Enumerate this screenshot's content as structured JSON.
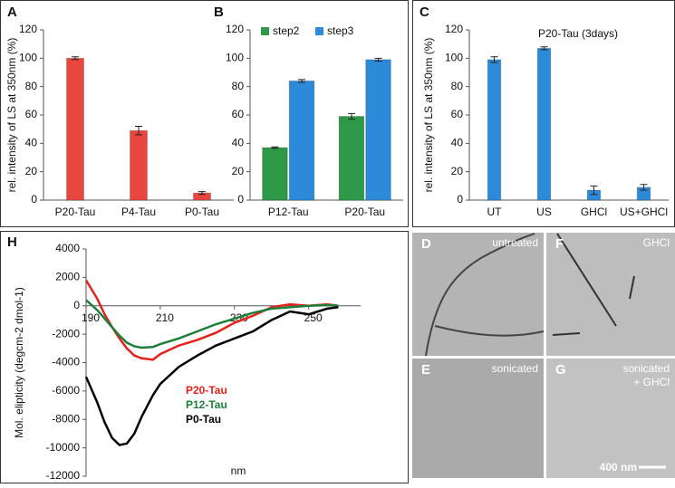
{
  "chart_data": [
    {
      "type": "bar",
      "panel": "A",
      "ylabel": "rel. intensity of LS at 350nm (%)",
      "categories": [
        "P20-Tau",
        "P4-Tau",
        "P0-Tau"
      ],
      "series": [
        {
          "color": "#e8463f",
          "values": [
            100,
            49,
            5
          ],
          "errors": [
            1,
            3,
            1
          ]
        }
      ],
      "ylim": [
        0,
        120
      ],
      "yticks": [
        0,
        20,
        40,
        60,
        80,
        100,
        120
      ]
    },
    {
      "type": "bar",
      "panel": "B",
      "categories": [
        "P12-Tau",
        "P20-Tau"
      ],
      "series": [
        {
          "name": "step2",
          "color": "#2e9a48",
          "values": [
            37,
            59
          ],
          "errors": [
            0.5,
            2
          ]
        },
        {
          "name": "step3",
          "color": "#2d8ad8",
          "values": [
            84,
            99
          ],
          "errors": [
            1,
            1
          ]
        }
      ],
      "ylim": [
        0,
        120
      ],
      "yticks": [
        0,
        20,
        40,
        60,
        80,
        100,
        120
      ]
    },
    {
      "type": "bar",
      "panel": "C",
      "title": "P20-Tau (3days)",
      "ylabel": "rel. intensity of LS at 350nm (%)",
      "categories": [
        "UT",
        "US",
        "GHCl",
        "US+GHCl"
      ],
      "series": [
        {
          "color": "#2d8ad8",
          "values": [
            99,
            107,
            7,
            9
          ],
          "errors": [
            2,
            1,
            3,
            2
          ]
        }
      ],
      "ylim": [
        0,
        120
      ],
      "yticks": [
        0,
        20,
        40,
        60,
        80,
        100,
        120
      ]
    },
    {
      "type": "line",
      "panel": "H",
      "ylabel": "Mol. elipticity (degcm-2 dmol-1)",
      "xlabel": "nm",
      "x": [
        190,
        193,
        195,
        197,
        199,
        201,
        203,
        205,
        208,
        210,
        215,
        220,
        225,
        230,
        235,
        240,
        245,
        250,
        255,
        258
      ],
      "series": [
        {
          "name": "P20-Tau",
          "color": "#e8201c",
          "values": [
            1800,
            500,
            -600,
            -1500,
            -2300,
            -3000,
            -3500,
            -3700,
            -3800,
            -3400,
            -2800,
            -2400,
            -1900,
            -1200,
            -700,
            -100,
            100,
            0,
            100,
            0
          ]
        },
        {
          "name": "P12-Tau",
          "color": "#1e7f3a",
          "values": [
            400,
            -300,
            -900,
            -1500,
            -2100,
            -2600,
            -2850,
            -2950,
            -2900,
            -2700,
            -2300,
            -1800,
            -1300,
            -900,
            -500,
            -200,
            -100,
            0,
            50,
            0
          ]
        },
        {
          "name": "P0-Tau",
          "color": "#000000",
          "values": [
            -5000,
            -6800,
            -8200,
            -9300,
            -9800,
            -9700,
            -9000,
            -7800,
            -6300,
            -5500,
            -4300,
            -3500,
            -2800,
            -2300,
            -1800,
            -1000,
            -400,
            -600,
            -200,
            -100
          ]
        }
      ],
      "xlim": [
        190,
        264
      ],
      "xticks": [
        190,
        210,
        230,
        250
      ],
      "ylim": [
        -12000,
        4000
      ],
      "yticks": [
        -12000,
        -10000,
        -8000,
        -6000,
        -4000,
        -2000,
        0,
        2000,
        4000
      ]
    }
  ],
  "images": [
    {
      "panel": "D",
      "label": "untreated"
    },
    {
      "panel": "F",
      "label": "GHCl"
    },
    {
      "panel": "E",
      "label": "sonicated"
    },
    {
      "panel": "G",
      "label": "sonicated",
      "label2": "+ GHCl",
      "scale": "400 nm"
    }
  ]
}
